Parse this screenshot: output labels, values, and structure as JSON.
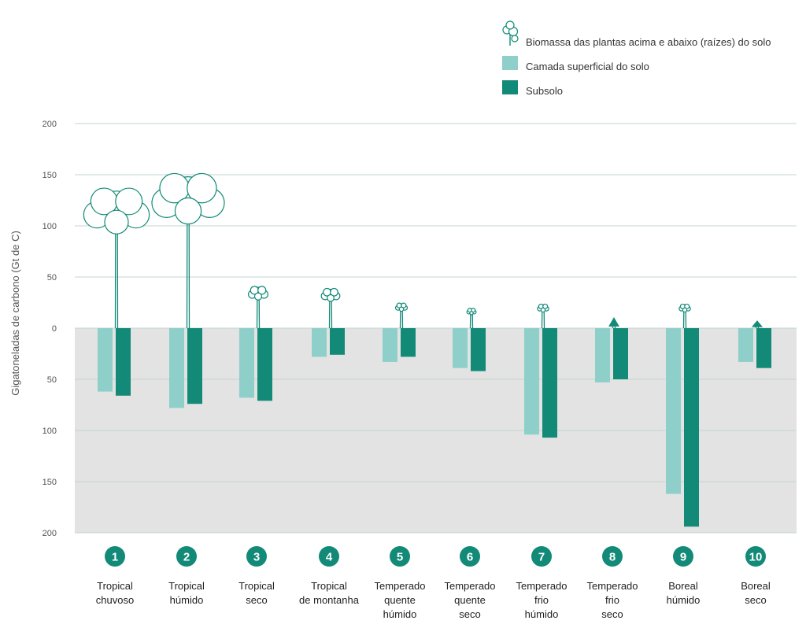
{
  "chart_data": {
    "type": "bar",
    "ylabel": "Gigatoneladas de carbono (Gt de C)",
    "y_ticks": [
      "200",
      "150",
      "100",
      "50",
      "0",
      "50",
      "100",
      "150",
      "200"
    ],
    "ylim": [
      -200,
      200
    ],
    "legend_position": "top-right",
    "legend": [
      {
        "key": "biomass",
        "label": "Biomassa das plantas acima e abaixo (raízes) do solo",
        "icon": "tree-icon"
      },
      {
        "key": "topsoil",
        "label": "Camada superficial do solo",
        "color": "#8ecfca"
      },
      {
        "key": "subsoil",
        "label": "Subsolo",
        "color": "#128a77"
      }
    ],
    "categories": [
      {
        "num": "1",
        "lines": [
          "Tropical",
          "chuvoso"
        ]
      },
      {
        "num": "2",
        "lines": [
          "Tropical",
          "húmido"
        ]
      },
      {
        "num": "3",
        "lines": [
          "Tropical",
          "seco"
        ]
      },
      {
        "num": "4",
        "lines": [
          "Tropical",
          "de montanha"
        ]
      },
      {
        "num": "5",
        "lines": [
          "Temperado",
          "quente",
          "húmido"
        ]
      },
      {
        "num": "6",
        "lines": [
          "Temperado",
          "quente",
          "seco"
        ]
      },
      {
        "num": "7",
        "lines": [
          "Temperado",
          "frio",
          "húmido"
        ]
      },
      {
        "num": "8",
        "lines": [
          "Temperado",
          "frio",
          "seco"
        ]
      },
      {
        "num": "9",
        "lines": [
          "Boreal",
          "húmido"
        ]
      },
      {
        "num": "10",
        "lines": [
          "Boreal",
          "seco"
        ]
      }
    ],
    "series": [
      {
        "name": "Biomassa das plantas acima e abaixo (raízes) do solo",
        "values": [
          134,
          148,
          40,
          38,
          24,
          19,
          23,
          10,
          23,
          7
        ]
      },
      {
        "name": "Camada superficial do solo",
        "values": [
          -62,
          -78,
          -68,
          -28,
          -33,
          -39,
          -104,
          -53,
          -162,
          -33
        ]
      },
      {
        "name": "Subsolo",
        "values": [
          -66,
          -74,
          -71,
          -26,
          -28,
          -42,
          -107,
          -50,
          -194,
          -39
        ]
      }
    ],
    "colors": {
      "topsoil": "#8ecfca",
      "subsoil": "#128a77",
      "tree": "#128a77",
      "below_zero_bg": "#e3e3e3",
      "grid": "#c3d6d3"
    }
  }
}
